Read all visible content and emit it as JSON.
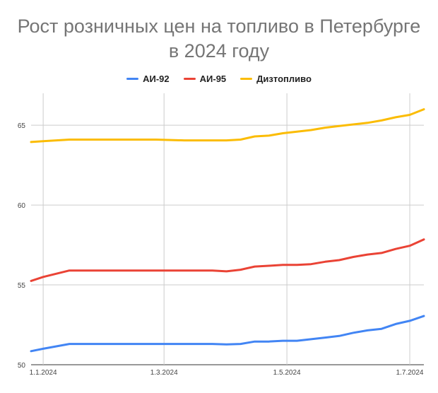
{
  "chart_data": {
    "type": "line",
    "title": "Рост розничных цен на топливо в Петербурге в 2024 году",
    "title_lines": [
      "Рост розничных цен на топливо в Петербурге",
      "в 2024 году"
    ],
    "xlabel": "",
    "ylabel": "",
    "ylim": [
      50,
      67
    ],
    "yticks": [
      50,
      55,
      60,
      65
    ],
    "xticks": [
      {
        "label": "1.1.2024",
        "x": 0
      },
      {
        "label": "1.3.2024",
        "x": 60
      },
      {
        "label": "1.5.2024",
        "x": 121
      },
      {
        "label": "1.7.2024",
        "x": 182
      }
    ],
    "x": [
      -6,
      0,
      13,
      28,
      42,
      56,
      70,
      84,
      91,
      98,
      105,
      112,
      119,
      126,
      133,
      140,
      147,
      154,
      161,
      168,
      175,
      182,
      189
    ],
    "series": [
      {
        "name": "АИ-92",
        "color": "#4285f4",
        "values": [
          50.85,
          51.0,
          51.3,
          51.3,
          51.3,
          51.3,
          51.3,
          51.3,
          51.27,
          51.3,
          51.45,
          51.45,
          51.5,
          51.5,
          51.6,
          51.7,
          51.8,
          52.0,
          52.15,
          52.25,
          52.55,
          52.75,
          53.05
        ]
      },
      {
        "name": "АИ-95",
        "color": "#ea4335",
        "values": [
          55.25,
          55.5,
          55.9,
          55.9,
          55.9,
          55.9,
          55.9,
          55.9,
          55.85,
          55.95,
          56.15,
          56.2,
          56.25,
          56.25,
          56.3,
          56.45,
          56.55,
          56.75,
          56.9,
          57.0,
          57.25,
          57.45,
          57.85
        ]
      },
      {
        "name": "Дизтопливо",
        "color": "#fbbc04",
        "values": [
          63.95,
          64.0,
          64.1,
          64.1,
          64.1,
          64.1,
          64.05,
          64.05,
          64.05,
          64.1,
          64.3,
          64.35,
          64.5,
          64.6,
          64.7,
          64.85,
          64.95,
          65.05,
          65.15,
          65.3,
          65.5,
          65.65,
          66.0
        ]
      }
    ],
    "legend_position": "top",
    "grid": true
  }
}
